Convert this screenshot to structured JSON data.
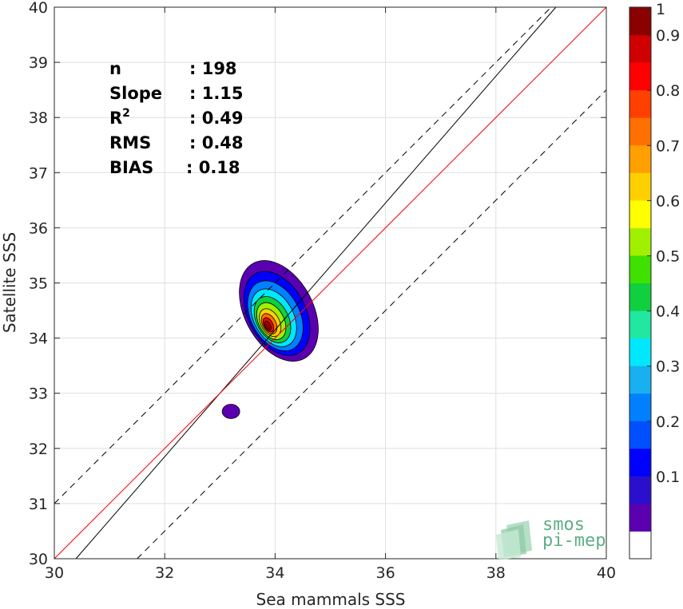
{
  "chart_data": {
    "type": "contour",
    "title": "",
    "xlabel": "Sea mammals SSS",
    "ylabel": "Satellite SSS",
    "xlim": [
      30,
      40
    ],
    "ylim": [
      30,
      40
    ],
    "xticks": [
      "30",
      "32",
      "34",
      "36",
      "38",
      "40"
    ],
    "yticks": [
      "30",
      "31",
      "32",
      "33",
      "34",
      "35",
      "36",
      "37",
      "38",
      "39",
      "40"
    ],
    "grid": true,
    "stats": [
      {
        "label": "n",
        "value": ": 198"
      },
      {
        "label": "Slope",
        "value": ": 1.15"
      },
      {
        "label": "R",
        "sup": "2",
        "value": ": 0.49"
      },
      {
        "label": "RMS",
        "value": ": 0.48"
      },
      {
        "label": "BIAS",
        "value": ": 0.18"
      }
    ],
    "lines": {
      "identity": {
        "slope": 1,
        "intercept": 0,
        "color": "#ff0000"
      },
      "regression": {
        "slope": 1.15,
        "intercept": -4.95,
        "color": "#000000"
      },
      "bounds": [
        {
          "slope": 1,
          "intercept": 1.0,
          "style": "dashed"
        },
        {
          "slope": 1,
          "intercept": -1.5,
          "style": "dashed"
        }
      ]
    },
    "density_peak": {
      "x": 33.85,
      "y": 34.2
    },
    "secondary_blob": {
      "x": 33.2,
      "y": 32.67
    },
    "colorbar": {
      "min": 0,
      "max": 1,
      "ticks": [
        "0.1",
        "0.2",
        "0.3",
        "0.4",
        "0.5",
        "0.6",
        "0.7",
        "0.8",
        "0.9",
        "1"
      ],
      "colors": [
        "#ffffff",
        "#5a00b0",
        "#2a10cc",
        "#0000ff",
        "#0050ff",
        "#0080ff",
        "#18b0f0",
        "#00e8ff",
        "#20e8a0",
        "#10d040",
        "#40e000",
        "#a0f000",
        "#ffff00",
        "#ffd000",
        "#ffa000",
        "#ff7000",
        "#ff4000",
        "#ff0000",
        "#d00000",
        "#8b0000"
      ]
    }
  },
  "logo": {
    "line1": "smos",
    "line2": "pi-mep"
  }
}
